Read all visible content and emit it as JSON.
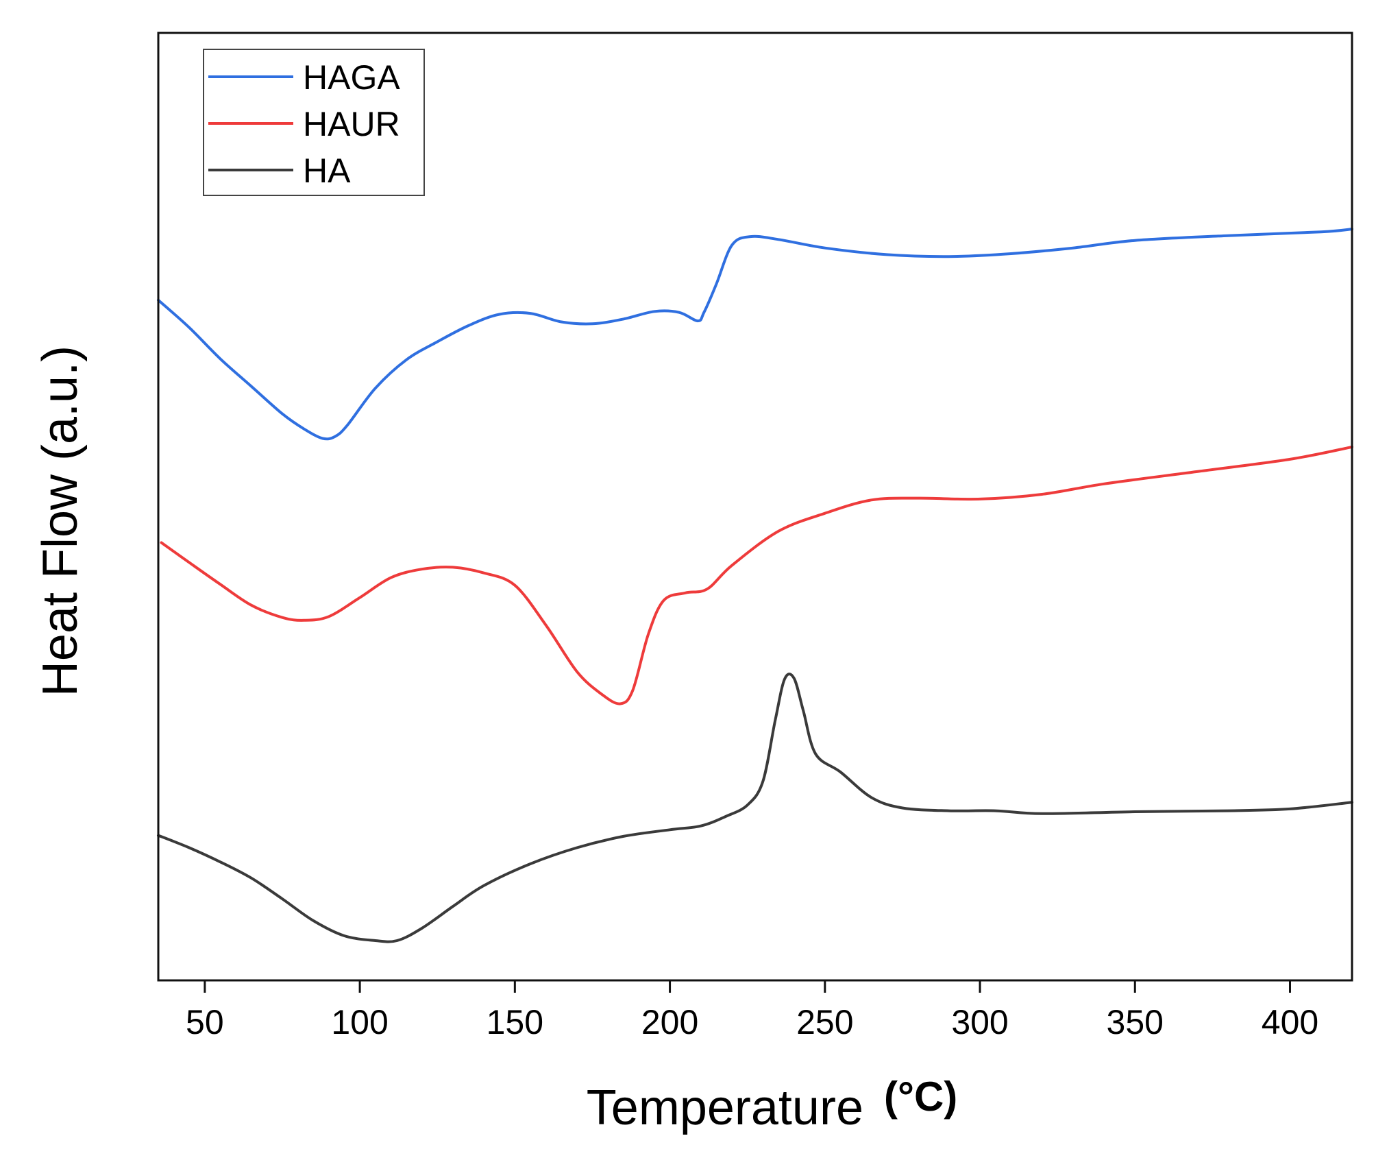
{
  "chart_data": {
    "type": "line",
    "title": "",
    "xlabel": "Temperature",
    "xlabel_unit": "(°C)",
    "ylabel": "Heat Flow (a.u.)",
    "xlim": [
      35,
      420
    ],
    "ylim": [
      0,
      100
    ],
    "y_ticks_shown": false,
    "grid": false,
    "legend_position": "top-left",
    "x_ticks": [
      50,
      100,
      150,
      200,
      250,
      300,
      350,
      400
    ],
    "x_tick_labels": [
      "50",
      "100",
      "150",
      "200",
      "250",
      "300",
      "350",
      "400"
    ],
    "series": [
      {
        "name": "HAGA",
        "color": "#2f6fe0",
        "points": [
          [
            35,
            71.8
          ],
          [
            45,
            68.9
          ],
          [
            55,
            65.6
          ],
          [
            65,
            62.7
          ],
          [
            75,
            59.8
          ],
          [
            82,
            58.2
          ],
          [
            88,
            57.2
          ],
          [
            92,
            57.4
          ],
          [
            96,
            58.6
          ],
          [
            105,
            62.5
          ],
          [
            115,
            65.5
          ],
          [
            125,
            67.4
          ],
          [
            135,
            69.1
          ],
          [
            145,
            70.3
          ],
          [
            155,
            70.4
          ],
          [
            165,
            69.5
          ],
          [
            175,
            69.3
          ],
          [
            185,
            69.8
          ],
          [
            195,
            70.6
          ],
          [
            203,
            70.5
          ],
          [
            209,
            69.6
          ],
          [
            211,
            70.5
          ],
          [
            215,
            73.5
          ],
          [
            220,
            77.6
          ],
          [
            226,
            78.5
          ],
          [
            235,
            78.2
          ],
          [
            250,
            77.3
          ],
          [
            270,
            76.6
          ],
          [
            290,
            76.4
          ],
          [
            310,
            76.7
          ],
          [
            330,
            77.3
          ],
          [
            350,
            78.1
          ],
          [
            380,
            78.6
          ],
          [
            410,
            79.0
          ],
          [
            420,
            79.3
          ]
        ]
      },
      {
        "name": "HAUR",
        "color": "#ee3b3b",
        "points": [
          [
            36,
            46.2
          ],
          [
            45,
            44.1
          ],
          [
            55,
            41.8
          ],
          [
            65,
            39.6
          ],
          [
            75,
            38.3
          ],
          [
            82,
            38.0
          ],
          [
            90,
            38.4
          ],
          [
            100,
            40.4
          ],
          [
            110,
            42.5
          ],
          [
            120,
            43.4
          ],
          [
            130,
            43.6
          ],
          [
            140,
            43.0
          ],
          [
            150,
            41.7
          ],
          [
            160,
            37.5
          ],
          [
            170,
            32.6
          ],
          [
            178,
            30.2
          ],
          [
            184,
            29.2
          ],
          [
            188,
            30.6
          ],
          [
            193,
            36.5
          ],
          [
            198,
            40.1
          ],
          [
            205,
            40.9
          ],
          [
            212,
            41.3
          ],
          [
            220,
            43.8
          ],
          [
            235,
            47.4
          ],
          [
            250,
            49.3
          ],
          [
            265,
            50.7
          ],
          [
            280,
            50.9
          ],
          [
            300,
            50.8
          ],
          [
            320,
            51.3
          ],
          [
            340,
            52.4
          ],
          [
            370,
            53.7
          ],
          [
            400,
            55.0
          ],
          [
            420,
            56.3
          ]
        ]
      },
      {
        "name": "HA",
        "color": "#3a3a3a",
        "points": [
          [
            35,
            15.3
          ],
          [
            45,
            14.0
          ],
          [
            55,
            12.5
          ],
          [
            65,
            10.8
          ],
          [
            75,
            8.6
          ],
          [
            85,
            6.3
          ],
          [
            95,
            4.7
          ],
          [
            105,
            4.2
          ],
          [
            112,
            4.2
          ],
          [
            120,
            5.5
          ],
          [
            130,
            7.8
          ],
          [
            140,
            10.0
          ],
          [
            155,
            12.3
          ],
          [
            170,
            14.0
          ],
          [
            185,
            15.2
          ],
          [
            200,
            15.9
          ],
          [
            210,
            16.3
          ],
          [
            218,
            17.3
          ],
          [
            225,
            18.5
          ],
          [
            230,
            21.0
          ],
          [
            234,
            27.5
          ],
          [
            237,
            31.8
          ],
          [
            240,
            31.9
          ],
          [
            243,
            28.5
          ],
          [
            247,
            23.9
          ],
          [
            255,
            22.0
          ],
          [
            265,
            19.3
          ],
          [
            275,
            18.2
          ],
          [
            290,
            17.9
          ],
          [
            305,
            17.9
          ],
          [
            320,
            17.6
          ],
          [
            350,
            17.8
          ],
          [
            380,
            17.9
          ],
          [
            400,
            18.1
          ],
          [
            420,
            18.8
          ]
        ]
      }
    ]
  }
}
